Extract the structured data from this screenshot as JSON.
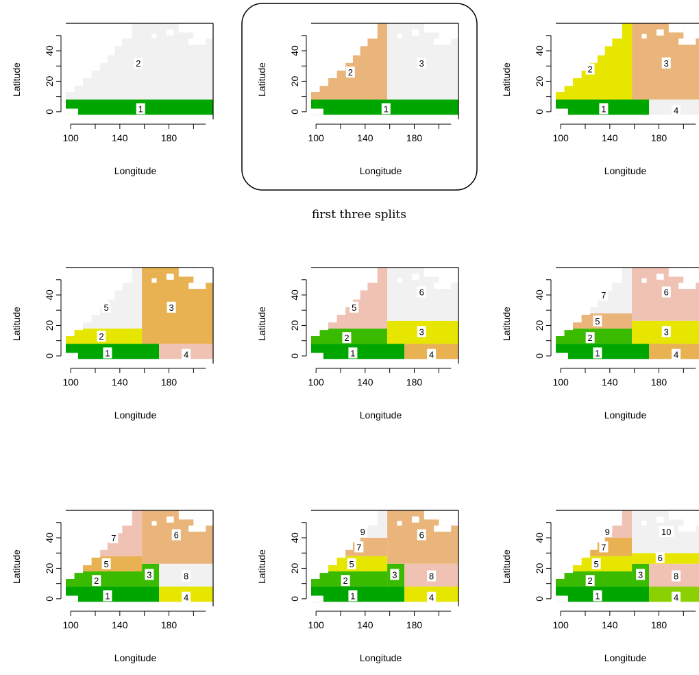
{
  "caption": "first three splits",
  "colors": {
    "white": "#ffffff",
    "light_gray": "#f1f1f1",
    "dark_green": "#00a600",
    "green": "#3bbb00",
    "yellow_green": "#8bd000",
    "yellow": "#e6e600",
    "orange_tan": "#e8b152",
    "tan": "#eab57a",
    "pink": "#efc2b4"
  },
  "chart_data": [
    {
      "type": "heatmap",
      "xlabel": "Longitude",
      "ylabel": "Latitude",
      "xlim": [
        96,
        216
      ],
      "ylim": [
        -5,
        58
      ],
      "x_ticks": [
        100,
        140,
        180
      ],
      "y_ticks": [
        0,
        20,
        40
      ],
      "regions": [
        {
          "x0": 96,
          "x1": 216,
          "y0": -2,
          "y1": 8,
          "fill": "dark_green"
        },
        {
          "x0": 96,
          "x1": 216,
          "y0": 8,
          "y1": 58,
          "fill": "light_gray"
        }
      ],
      "labels": [
        {
          "text": "1",
          "x": 157,
          "y": 2
        },
        {
          "text": "2",
          "x": 155,
          "y": 32
        }
      ]
    },
    {
      "type": "heatmap",
      "xlabel": "Longitude",
      "ylabel": "Latitude",
      "xlim": [
        96,
        216
      ],
      "ylim": [
        -5,
        58
      ],
      "x_ticks": [
        100,
        140,
        180
      ],
      "y_ticks": [
        0,
        20,
        40
      ],
      "highlighted": true,
      "regions": [
        {
          "x0": 96,
          "x1": 216,
          "y0": -2,
          "y1": 8,
          "fill": "dark_green"
        },
        {
          "x0": 96,
          "x1": 158,
          "y0": 8,
          "y1": 58,
          "fill": "tan"
        },
        {
          "x0": 158,
          "x1": 216,
          "y0": 8,
          "y1": 58,
          "fill": "light_gray"
        }
      ],
      "labels": [
        {
          "text": "1",
          "x": 157,
          "y": 2
        },
        {
          "text": "2",
          "x": 128,
          "y": 26
        },
        {
          "text": "3",
          "x": 186,
          "y": 32
        }
      ]
    },
    {
      "type": "heatmap",
      "xlabel": "Longitude",
      "ylabel": "Latitude",
      "xlim": [
        96,
        216
      ],
      "ylim": [
        -5,
        58
      ],
      "x_ticks": [
        100,
        140,
        180
      ],
      "y_ticks": [
        0,
        20,
        40
      ],
      "regions": [
        {
          "x0": 96,
          "x1": 172,
          "y0": -2,
          "y1": 8,
          "fill": "dark_green"
        },
        {
          "x0": 172,
          "x1": 216,
          "y0": -2,
          "y1": 8,
          "fill": "light_gray"
        },
        {
          "x0": 96,
          "x1": 158,
          "y0": 8,
          "y1": 58,
          "fill": "yellow"
        },
        {
          "x0": 158,
          "x1": 216,
          "y0": 8,
          "y1": 58,
          "fill": "tan"
        }
      ],
      "labels": [
        {
          "text": "1",
          "x": 135,
          "y": 2
        },
        {
          "text": "2",
          "x": 124,
          "y": 28
        },
        {
          "text": "3",
          "x": 186,
          "y": 32
        },
        {
          "text": "4",
          "x": 194,
          "y": 1
        }
      ]
    },
    {
      "type": "heatmap",
      "xlabel": "Longitude",
      "ylabel": "Latitude",
      "xlim": [
        96,
        216
      ],
      "ylim": [
        -5,
        58
      ],
      "x_ticks": [
        100,
        140,
        180
      ],
      "y_ticks": [
        0,
        20,
        40
      ],
      "regions": [
        {
          "x0": 96,
          "x1": 172,
          "y0": -2,
          "y1": 8,
          "fill": "dark_green"
        },
        {
          "x0": 172,
          "x1": 216,
          "y0": -2,
          "y1": 8,
          "fill": "pink"
        },
        {
          "x0": 96,
          "x1": 158,
          "y0": 8,
          "y1": 18,
          "fill": "yellow"
        },
        {
          "x0": 96,
          "x1": 158,
          "y0": 18,
          "y1": 58,
          "fill": "light_gray"
        },
        {
          "x0": 158,
          "x1": 216,
          "y0": 8,
          "y1": 58,
          "fill": "orange_tan"
        }
      ],
      "labels": [
        {
          "text": "1",
          "x": 130,
          "y": 2
        },
        {
          "text": "2",
          "x": 125,
          "y": 13
        },
        {
          "text": "3",
          "x": 182,
          "y": 32
        },
        {
          "text": "4",
          "x": 194,
          "y": 1
        },
        {
          "text": "5",
          "x": 129,
          "y": 32
        }
      ]
    },
    {
      "type": "heatmap",
      "xlabel": "Longitude",
      "ylabel": "Latitude",
      "xlim": [
        96,
        216
      ],
      "ylim": [
        -5,
        58
      ],
      "x_ticks": [
        100,
        140,
        180
      ],
      "y_ticks": [
        0,
        20,
        40
      ],
      "regions": [
        {
          "x0": 96,
          "x1": 172,
          "y0": -2,
          "y1": 8,
          "fill": "dark_green"
        },
        {
          "x0": 172,
          "x1": 216,
          "y0": -2,
          "y1": 8,
          "fill": "orange_tan"
        },
        {
          "x0": 96,
          "x1": 158,
          "y0": 8,
          "y1": 18,
          "fill": "green"
        },
        {
          "x0": 96,
          "x1": 158,
          "y0": 18,
          "y1": 58,
          "fill": "pink"
        },
        {
          "x0": 158,
          "x1": 216,
          "y0": 8,
          "y1": 23,
          "fill": "yellow"
        },
        {
          "x0": 158,
          "x1": 216,
          "y0": 23,
          "y1": 58,
          "fill": "light_gray"
        }
      ],
      "labels": [
        {
          "text": "1",
          "x": 130,
          "y": 2
        },
        {
          "text": "2",
          "x": 125,
          "y": 12
        },
        {
          "text": "3",
          "x": 186,
          "y": 16
        },
        {
          "text": "4",
          "x": 194,
          "y": 1
        },
        {
          "text": "5",
          "x": 131,
          "y": 32
        },
        {
          "text": "6",
          "x": 186,
          "y": 42
        }
      ]
    },
    {
      "type": "heatmap",
      "xlabel": "Longitude",
      "ylabel": "Latitude",
      "xlim": [
        96,
        216
      ],
      "ylim": [
        -5,
        58
      ],
      "x_ticks": [
        100,
        140,
        180
      ],
      "y_ticks": [
        0,
        20,
        40
      ],
      "regions": [
        {
          "x0": 96,
          "x1": 172,
          "y0": -2,
          "y1": 8,
          "fill": "dark_green"
        },
        {
          "x0": 172,
          "x1": 216,
          "y0": -2,
          "y1": 8,
          "fill": "orange_tan"
        },
        {
          "x0": 96,
          "x1": 158,
          "y0": 8,
          "y1": 18,
          "fill": "green"
        },
        {
          "x0": 96,
          "x1": 158,
          "y0": 18,
          "y1": 28,
          "fill": "tan"
        },
        {
          "x0": 96,
          "x1": 158,
          "y0": 28,
          "y1": 58,
          "fill": "light_gray"
        },
        {
          "x0": 158,
          "x1": 216,
          "y0": 8,
          "y1": 23,
          "fill": "yellow"
        },
        {
          "x0": 158,
          "x1": 216,
          "y0": 23,
          "y1": 58,
          "fill": "pink"
        }
      ],
      "labels": [
        {
          "text": "1",
          "x": 130,
          "y": 2
        },
        {
          "text": "2",
          "x": 124,
          "y": 12
        },
        {
          "text": "3",
          "x": 186,
          "y": 16
        },
        {
          "text": "4",
          "x": 194,
          "y": 1
        },
        {
          "text": "5",
          "x": 130,
          "y": 23
        },
        {
          "text": "6",
          "x": 186,
          "y": 42
        },
        {
          "text": "7",
          "x": 135,
          "y": 40
        }
      ]
    },
    {
      "type": "heatmap",
      "xlabel": "Longitude",
      "ylabel": "Latitude",
      "xlim": [
        96,
        216
      ],
      "ylim": [
        -5,
        58
      ],
      "x_ticks": [
        100,
        140,
        180
      ],
      "y_ticks": [
        0,
        20,
        40
      ],
      "regions": [
        {
          "x0": 96,
          "x1": 172,
          "y0": -2,
          "y1": 8,
          "fill": "dark_green"
        },
        {
          "x0": 172,
          "x1": 216,
          "y0": -2,
          "y1": 8,
          "fill": "yellow"
        },
        {
          "x0": 96,
          "x1": 158,
          "y0": 8,
          "y1": 18,
          "fill": "green"
        },
        {
          "x0": 96,
          "x1": 158,
          "y0": 18,
          "y1": 28,
          "fill": "orange_tan"
        },
        {
          "x0": 96,
          "x1": 158,
          "y0": 28,
          "y1": 58,
          "fill": "pink"
        },
        {
          "x0": 158,
          "x1": 172,
          "y0": 8,
          "y1": 23,
          "fill": "green"
        },
        {
          "x0": 172,
          "x1": 216,
          "y0": 8,
          "y1": 23,
          "fill": "light_gray"
        },
        {
          "x0": 158,
          "x1": 216,
          "y0": 23,
          "y1": 58,
          "fill": "tan"
        }
      ],
      "labels": [
        {
          "text": "1",
          "x": 130,
          "y": 2
        },
        {
          "text": "2",
          "x": 121,
          "y": 12
        },
        {
          "text": "3",
          "x": 164,
          "y": 16
        },
        {
          "text": "4",
          "x": 194,
          "y": 1
        },
        {
          "text": "5",
          "x": 129,
          "y": 23
        },
        {
          "text": "6",
          "x": 186,
          "y": 42
        },
        {
          "text": "7",
          "x": 135,
          "y": 40
        },
        {
          "text": "8",
          "x": 194,
          "y": 15
        }
      ]
    },
    {
      "type": "heatmap",
      "xlabel": "Longitude",
      "ylabel": "Latitude",
      "xlim": [
        96,
        216
      ],
      "ylim": [
        -5,
        58
      ],
      "x_ticks": [
        100,
        140,
        180
      ],
      "y_ticks": [
        0,
        20,
        40
      ],
      "regions": [
        {
          "x0": 96,
          "x1": 172,
          "y0": -2,
          "y1": 8,
          "fill": "dark_green"
        },
        {
          "x0": 172,
          "x1": 216,
          "y0": -2,
          "y1": 8,
          "fill": "yellow"
        },
        {
          "x0": 96,
          "x1": 158,
          "y0": 8,
          "y1": 18,
          "fill": "green"
        },
        {
          "x0": 96,
          "x1": 158,
          "y0": 18,
          "y1": 28,
          "fill": "yellow"
        },
        {
          "x0": 96,
          "x1": 158,
          "y0": 28,
          "y1": 40,
          "fill": "tan"
        },
        {
          "x0": 96,
          "x1": 158,
          "y0": 40,
          "y1": 58,
          "fill": "light_gray"
        },
        {
          "x0": 158,
          "x1": 172,
          "y0": 8,
          "y1": 23,
          "fill": "green"
        },
        {
          "x0": 172,
          "x1": 216,
          "y0": 8,
          "y1": 23,
          "fill": "pink"
        },
        {
          "x0": 158,
          "x1": 216,
          "y0": 23,
          "y1": 58,
          "fill": "tan"
        }
      ],
      "labels": [
        {
          "text": "1",
          "x": 130,
          "y": 2
        },
        {
          "text": "2",
          "x": 124,
          "y": 12
        },
        {
          "text": "3",
          "x": 164,
          "y": 16
        },
        {
          "text": "4",
          "x": 194,
          "y": 1
        },
        {
          "text": "5",
          "x": 129,
          "y": 23
        },
        {
          "text": "6",
          "x": 186,
          "y": 42
        },
        {
          "text": "7",
          "x": 135,
          "y": 34
        },
        {
          "text": "8",
          "x": 194,
          "y": 15
        },
        {
          "text": "9",
          "x": 138,
          "y": 44
        }
      ]
    },
    {
      "type": "heatmap",
      "xlabel": "Longitude",
      "ylabel": "Latitude",
      "xlim": [
        96,
        216
      ],
      "ylim": [
        -5,
        58
      ],
      "x_ticks": [
        100,
        140,
        180
      ],
      "y_ticks": [
        0,
        20,
        40
      ],
      "regions": [
        {
          "x0": 96,
          "x1": 172,
          "y0": -2,
          "y1": 8,
          "fill": "dark_green"
        },
        {
          "x0": 172,
          "x1": 216,
          "y0": -2,
          "y1": 8,
          "fill": "yellow_green"
        },
        {
          "x0": 96,
          "x1": 158,
          "y0": 8,
          "y1": 18,
          "fill": "green"
        },
        {
          "x0": 96,
          "x1": 158,
          "y0": 18,
          "y1": 28,
          "fill": "yellow"
        },
        {
          "x0": 96,
          "x1": 158,
          "y0": 28,
          "y1": 40,
          "fill": "orange_tan"
        },
        {
          "x0": 96,
          "x1": 158,
          "y0": 40,
          "y1": 58,
          "fill": "pink"
        },
        {
          "x0": 158,
          "x1": 172,
          "y0": 8,
          "y1": 23,
          "fill": "green"
        },
        {
          "x0": 172,
          "x1": 216,
          "y0": 8,
          "y1": 23,
          "fill": "pink"
        },
        {
          "x0": 158,
          "x1": 216,
          "y0": 23,
          "y1": 30,
          "fill": "yellow"
        },
        {
          "x0": 158,
          "x1": 216,
          "y0": 30,
          "y1": 58,
          "fill": "light_gray"
        }
      ],
      "labels": [
        {
          "text": "1",
          "x": 130,
          "y": 2
        },
        {
          "text": "2",
          "x": 124,
          "y": 12
        },
        {
          "text": "3",
          "x": 165,
          "y": 16
        },
        {
          "text": "4",
          "x": 194,
          "y": 1
        },
        {
          "text": "5",
          "x": 129,
          "y": 23
        },
        {
          "text": "6",
          "x": 181,
          "y": 27
        },
        {
          "text": "7",
          "x": 135,
          "y": 34
        },
        {
          "text": "8",
          "x": 194,
          "y": 15
        },
        {
          "text": "9",
          "x": 138,
          "y": 44
        },
        {
          "text": "10",
          "x": 186,
          "y": 44
        }
      ]
    }
  ]
}
